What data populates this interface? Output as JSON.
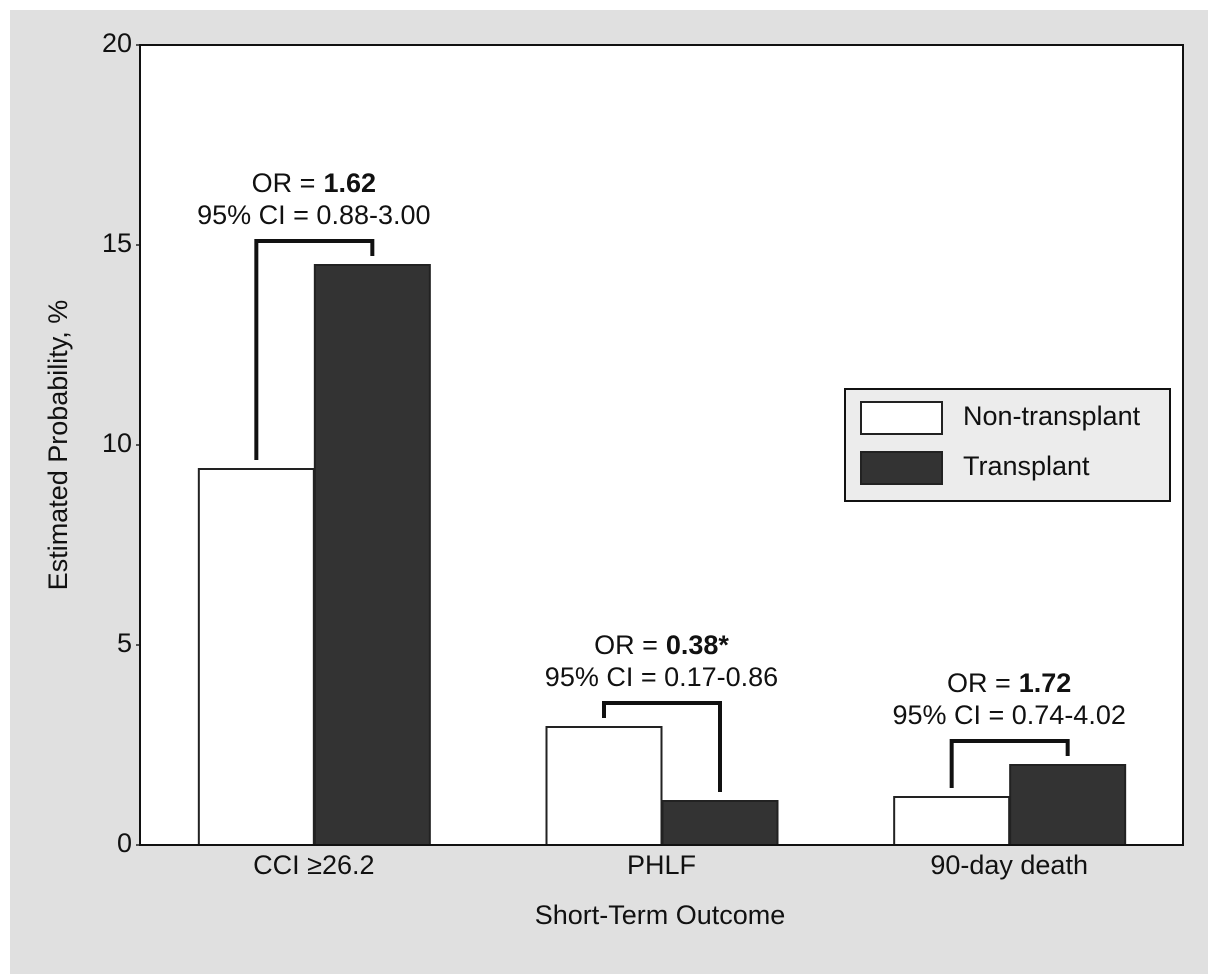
{
  "chart_data": {
    "type": "bar",
    "x_label": "Short-Term Outcome",
    "y_label": "Estimated Probability, %",
    "categories": [
      "CCI ≥26.2",
      "PHLF",
      "90-day death"
    ],
    "series": [
      {
        "name": "Non-transplant",
        "color": "#ffffff",
        "values": [
          9.4,
          2.95,
          1.2
        ]
      },
      {
        "name": "Transplant",
        "color": "#333333",
        "values": [
          14.5,
          1.1,
          2.0
        ]
      }
    ],
    "ylim": [
      0,
      20
    ],
    "yticks": [
      0,
      5,
      10,
      15,
      20
    ],
    "legend": "right",
    "annotations": [
      {
        "or_prefix": "OR =",
        "or_value": "1.62",
        "ci": "95% CI = 0.88-3.00"
      },
      {
        "or_prefix": "OR =",
        "or_value": "0.38*",
        "ci": "95% CI = 0.17-0.86"
      },
      {
        "or_prefix": "OR =",
        "or_value": "1.72",
        "ci": "95% CI = 0.74-4.02"
      }
    ]
  }
}
